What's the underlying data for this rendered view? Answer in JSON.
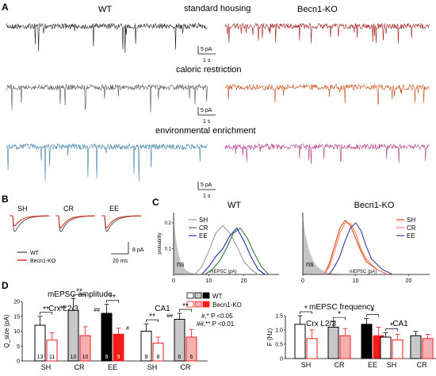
{
  "panel_labels": {
    "A": "A",
    "B": "B",
    "C": "C",
    "D": "D"
  },
  "traces": {
    "wt_label": "WT",
    "ko_label": "Becn1-KO",
    "conditions": [
      {
        "label": "standard housing",
        "wt_color": "#1a1a1a",
        "ko_color": "#a01818"
      },
      {
        "label": "caloric restriction",
        "wt_color": "#555555",
        "ko_color": "#c8501a"
      },
      {
        "label": "environmental enrichment",
        "wt_color": "#3f7fa8",
        "ko_color": "#b23a86"
      }
    ],
    "scale_time": "1 s",
    "scale_amp": "5 pA"
  },
  "avg_events": {
    "panels": [
      "SH",
      "CR",
      "EE"
    ],
    "legend": [
      "WT",
      "Becn1-KO"
    ],
    "colors": {
      "wt": "#666666",
      "ko": "#e0301e"
    },
    "scale_time": "20 ms",
    "scale_amp": "8 pA"
  },
  "chart_data": [
    {
      "type": "line",
      "title": "WT",
      "xlabel": "mEPSC (pA)",
      "ylabel": "probability",
      "xticks": [
        "0",
        "10",
        "20"
      ],
      "yticks": [
        "0.1",
        "0.2"
      ],
      "xlim": [
        0,
        30
      ],
      "ylim": [
        0,
        0.24
      ],
      "ns_label": "ns",
      "series": [
        {
          "name": "SH",
          "color": "#999999",
          "x": [
            6,
            8,
            10,
            12,
            14,
            16,
            18,
            20,
            22,
            24
          ],
          "values": [
            0,
            0.03,
            0.09,
            0.16,
            0.19,
            0.16,
            0.11,
            0.05,
            0.02,
            0
          ]
        },
        {
          "name": "CR",
          "color": "#2e7d32",
          "x": [
            9,
            11,
            13,
            15,
            17,
            19,
            21,
            23,
            25,
            27
          ],
          "values": [
            0,
            0.02,
            0.05,
            0.1,
            0.16,
            0.18,
            0.14,
            0.08,
            0.03,
            0
          ]
        },
        {
          "name": "EE",
          "color": "#1f2bb4",
          "x": [
            8,
            10,
            12,
            14,
            16,
            18,
            20,
            22,
            24,
            26
          ],
          "values": [
            0,
            0.03,
            0.07,
            0.1,
            0.15,
            0.18,
            0.13,
            0.07,
            0.02,
            0
          ]
        }
      ]
    },
    {
      "type": "line",
      "title": "Becn1-KO",
      "xlabel": "mEPSC (pA)",
      "ylabel": "",
      "xticks": [
        "0",
        "10",
        "20"
      ],
      "xlim": [
        0,
        24
      ],
      "ylim": [
        0,
        0.24
      ],
      "ns_label": "ns",
      "series": [
        {
          "name": "SH",
          "color": "#e8471d",
          "x": [
            4,
            5,
            6,
            7,
            8,
            9,
            10,
            11,
            12,
            14,
            16
          ],
          "values": [
            0,
            0.04,
            0.11,
            0.18,
            0.21,
            0.19,
            0.14,
            0.09,
            0.05,
            0.02,
            0
          ]
        },
        {
          "name": "CR",
          "color": "#f08060",
          "x": [
            4,
            5,
            6,
            7,
            8,
            9,
            10,
            11,
            12,
            14,
            16
          ],
          "values": [
            0,
            0.03,
            0.09,
            0.16,
            0.2,
            0.2,
            0.16,
            0.1,
            0.06,
            0.02,
            0
          ]
        },
        {
          "name": "EE",
          "color": "#3a3a9a",
          "x": [
            5,
            6,
            7,
            8,
            9,
            10,
            11,
            12,
            13,
            15,
            17
          ],
          "values": [
            0,
            0.03,
            0.07,
            0.13,
            0.18,
            0.2,
            0.17,
            0.11,
            0.06,
            0.02,
            0
          ]
        }
      ]
    },
    {
      "type": "bar",
      "title": "Crx L2/3",
      "ylabel": "Q_size (pA)",
      "yticks": [
        "0",
        "5",
        "10",
        "15",
        "20"
      ],
      "ylim": [
        0,
        20
      ],
      "categories": [
        "SH",
        "CR",
        "EE"
      ],
      "series": [
        {
          "name": "WT",
          "values": [
            12,
            17,
            16
          ],
          "err": [
            3,
            4,
            3
          ],
          "n": [
            "13",
            "10",
            "9"
          ],
          "fills": [
            "#ffffff",
            "#c8c8c8",
            "#000000"
          ],
          "stroke": "#000000"
        },
        {
          "name": "Becn1-KO",
          "values": [
            7,
            8.5,
            9
          ],
          "err": [
            2.5,
            3,
            2
          ],
          "n": [
            "11",
            "10",
            "9"
          ],
          "fills": [
            "#ffffff",
            "#f4b0b0",
            "#ff1a1a"
          ],
          "stroke": "#ff1a1a"
        }
      ],
      "sig": [
        "**",
        "**",
        "**"
      ],
      "hash": [
        "",
        "##",
        "##"
      ],
      "hash_ko": [
        "",
        "",
        "#"
      ]
    },
    {
      "type": "bar",
      "title": "CA1",
      "yticks": [],
      "ylim": [
        0,
        20
      ],
      "categories": [
        "SH",
        "CR"
      ],
      "series": [
        {
          "name": "WT",
          "values": [
            10,
            14
          ],
          "err": [
            2.5,
            2
          ],
          "n": [
            "8",
            "6"
          ],
          "fills": [
            "#ffffff",
            "#c8c8c8"
          ],
          "stroke": "#000000"
        },
        {
          "name": "Becn1-KO",
          "values": [
            6,
            8
          ],
          "err": [
            2,
            2.5
          ],
          "n": [
            "8",
            "6"
          ],
          "fills": [
            "#ffffff",
            "#f4b0b0"
          ],
          "stroke": "#ff1a1a"
        }
      ],
      "sig": [
        "**",
        "**"
      ],
      "hash": [
        "",
        "##"
      ]
    },
    {
      "type": "bar",
      "title": "Crx L2/3",
      "ylabel": "F (Hz)",
      "yticks": [
        "0",
        "0.5",
        "1.0",
        "1.5"
      ],
      "ylim": [
        0,
        1.5
      ],
      "categories": [
        "SH",
        "CR",
        "EE"
      ],
      "series": [
        {
          "name": "WT",
          "values": [
            1.2,
            1.1,
            1.2
          ],
          "err": [
            0.3,
            0.2,
            0.2
          ],
          "fills": [
            "#ffffff",
            "#c8c8c8",
            "#000000"
          ],
          "stroke": "#000000"
        },
        {
          "name": "Becn1-KO",
          "values": [
            0.7,
            0.8,
            0.8
          ],
          "err": [
            0.3,
            0.25,
            0.3
          ],
          "fills": [
            "#ffffff",
            "#f4b0b0",
            "#ff1a1a"
          ],
          "stroke": "#ff1a1a"
        }
      ],
      "sig": [
        "*",
        "*",
        "*"
      ]
    },
    {
      "type": "bar",
      "title": "CA1",
      "yticks": [],
      "ylim": [
        0,
        1.5
      ],
      "categories": [
        "SH",
        "CR"
      ],
      "series": [
        {
          "name": "WT",
          "values": [
            0.75,
            0.8
          ],
          "err": [
            0.15,
            0.15
          ],
          "fills": [
            "#ffffff",
            "#c8c8c8"
          ],
          "stroke": "#000000"
        },
        {
          "name": "Becn1-KO",
          "values": [
            0.65,
            0.7
          ],
          "err": [
            0.2,
            0.15
          ],
          "fills": [
            "#ffffff",
            "#f4b0b0"
          ],
          "stroke": "#ff1a1a"
        }
      ],
      "sig": [
        "*",
        ""
      ]
    }
  ],
  "panelD": {
    "amp_title": "mEPSC amplitude",
    "freq_title": "mEPSC frequency",
    "legend": {
      "wt": "WT",
      "ko": "Becn1-KO"
    },
    "stats": [
      "#,* P <0.05",
      "##,** P <0.01"
    ]
  }
}
